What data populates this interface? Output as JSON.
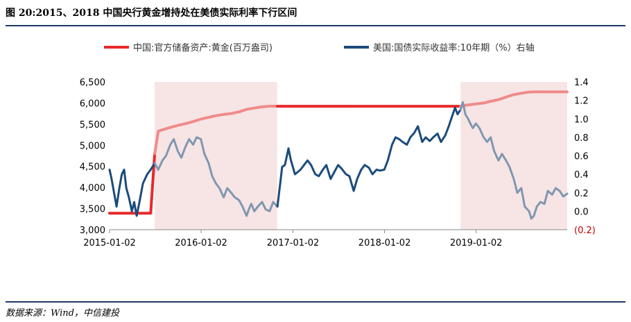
{
  "title": "图 20:2015、2018 中国央行黄金增持处在美债实际利率下行区间",
  "source": "数据来源：Wind，中信建投",
  "colors": {
    "gold": "#e8282a",
    "gold_light": "#f08a8a",
    "real": "#1b4b7c",
    "real_light": "#7f97b0",
    "shade": "#f7e4e4"
  },
  "chart_data": {
    "type": "line",
    "legend": [
      "中国:官方储备资产:黄金(百万盎司)",
      "美国:国债实际收益率:10年期（%）右轴"
    ],
    "legend_position": "top",
    "x_ticks": [
      "2015-01-02",
      "2016-01-02",
      "2017-01-02",
      "2018-01-02",
      "2019-01-02"
    ],
    "x_range": [
      "2015-01-02",
      "2019-12-31"
    ],
    "y_left": {
      "ticks": [
        "3,000",
        "3,500",
        "4,000",
        "4,500",
        "5,000",
        "5,500",
        "6,000",
        "6,500"
      ],
      "range": [
        3000,
        6500
      ]
    },
    "y_right": {
      "ticks": [
        "(0.2)",
        "0.0",
        "0.2",
        "0.4",
        "0.6",
        "0.8",
        "1.0",
        "1.2",
        "1.4"
      ],
      "range": [
        -0.2,
        1.4
      ]
    },
    "shaded_periods": [
      [
        "2015-07-01",
        "2016-10-31"
      ],
      [
        "2018-11-01",
        "2019-12-31"
      ]
    ],
    "series": [
      {
        "name": "中国:官方储备资产:黄金(百万盎司)",
        "axis": "left",
        "points": [
          [
            "2015-01-02",
            3389
          ],
          [
            "2015-02-01",
            3389
          ],
          [
            "2015-03-01",
            3389
          ],
          [
            "2015-04-01",
            3389
          ],
          [
            "2015-05-01",
            3389
          ],
          [
            "2015-06-01",
            3389
          ],
          [
            "2015-06-15",
            3389
          ],
          [
            "2015-07-01",
            4800
          ],
          [
            "2015-07-15",
            5332
          ],
          [
            "2015-08-01",
            5365
          ],
          [
            "2015-09-01",
            5420
          ],
          [
            "2015-10-01",
            5470
          ],
          [
            "2015-11-01",
            5510
          ],
          [
            "2015-12-01",
            5560
          ],
          [
            "2016-01-01",
            5620
          ],
          [
            "2016-02-01",
            5660
          ],
          [
            "2016-03-01",
            5700
          ],
          [
            "2016-04-01",
            5730
          ],
          [
            "2016-05-01",
            5750
          ],
          [
            "2016-06-01",
            5790
          ],
          [
            "2016-07-01",
            5850
          ],
          [
            "2016-08-01",
            5880
          ],
          [
            "2016-09-01",
            5910
          ],
          [
            "2016-10-01",
            5925
          ],
          [
            "2016-11-01",
            5924
          ],
          [
            "2017-01-01",
            5924
          ],
          [
            "2017-06-01",
            5924
          ],
          [
            "2018-01-01",
            5924
          ],
          [
            "2018-06-01",
            5924
          ],
          [
            "2018-10-01",
            5924
          ],
          [
            "2018-11-01",
            5924
          ],
          [
            "2018-12-01",
            5956
          ],
          [
            "2019-01-01",
            5978
          ],
          [
            "2019-02-01",
            6000
          ],
          [
            "2019-03-01",
            6040
          ],
          [
            "2019-04-01",
            6080
          ],
          [
            "2019-05-01",
            6140
          ],
          [
            "2019-06-01",
            6200
          ],
          [
            "2019-07-01",
            6230
          ],
          [
            "2019-08-01",
            6260
          ],
          [
            "2019-09-01",
            6265
          ],
          [
            "2019-10-01",
            6264
          ],
          [
            "2019-11-01",
            6264
          ],
          [
            "2019-12-31",
            6264
          ]
        ]
      },
      {
        "name": "美国:国债实际收益率:10年期（%）右轴",
        "axis": "right",
        "points": [
          [
            "2015-01-02",
            0.45
          ],
          [
            "2015-01-10",
            0.35
          ],
          [
            "2015-01-20",
            0.2
          ],
          [
            "2015-01-30",
            0.05
          ],
          [
            "2015-02-10",
            0.25
          ],
          [
            "2015-02-20",
            0.4
          ],
          [
            "2015-03-01",
            0.45
          ],
          [
            "2015-03-10",
            0.25
          ],
          [
            "2015-03-20",
            0.15
          ],
          [
            "2015-04-01",
            0.0
          ],
          [
            "2015-04-10",
            0.1
          ],
          [
            "2015-04-20",
            -0.05
          ],
          [
            "2015-05-01",
            0.1
          ],
          [
            "2015-05-15",
            0.3
          ],
          [
            "2015-06-01",
            0.4
          ],
          [
            "2015-06-15",
            0.45
          ],
          [
            "2015-07-01",
            0.52
          ],
          [
            "2015-07-15",
            0.45
          ],
          [
            "2015-08-01",
            0.55
          ],
          [
            "2015-08-15",
            0.6
          ],
          [
            "2015-09-01",
            0.72
          ],
          [
            "2015-09-15",
            0.78
          ],
          [
            "2015-10-01",
            0.65
          ],
          [
            "2015-10-15",
            0.58
          ],
          [
            "2015-11-01",
            0.7
          ],
          [
            "2015-11-15",
            0.78
          ],
          [
            "2015-12-01",
            0.72
          ],
          [
            "2015-12-15",
            0.8
          ],
          [
            "2016-01-01",
            0.78
          ],
          [
            "2016-01-15",
            0.62
          ],
          [
            "2016-02-01",
            0.52
          ],
          [
            "2016-02-15",
            0.38
          ],
          [
            "2016-03-01",
            0.3
          ],
          [
            "2016-03-15",
            0.25
          ],
          [
            "2016-04-01",
            0.15
          ],
          [
            "2016-04-15",
            0.25
          ],
          [
            "2016-05-01",
            0.2
          ],
          [
            "2016-05-15",
            0.15
          ],
          [
            "2016-06-01",
            0.12
          ],
          [
            "2016-06-15",
            0.05
          ],
          [
            "2016-07-01",
            -0.05
          ],
          [
            "2016-07-10",
            0.02
          ],
          [
            "2016-07-20",
            0.08
          ],
          [
            "2016-08-01",
            0.0
          ],
          [
            "2016-08-15",
            0.05
          ],
          [
            "2016-09-01",
            0.1
          ],
          [
            "2016-09-15",
            0.02
          ],
          [
            "2016-10-01",
            0.0
          ],
          [
            "2016-10-15",
            0.1
          ],
          [
            "2016-11-01",
            0.05
          ],
          [
            "2016-11-10",
            0.25
          ],
          [
            "2016-11-20",
            0.48
          ],
          [
            "2016-12-01",
            0.5
          ],
          [
            "2016-12-15",
            0.68
          ],
          [
            "2016-12-25",
            0.55
          ],
          [
            "2017-01-10",
            0.4
          ],
          [
            "2017-02-01",
            0.45
          ],
          [
            "2017-03-01",
            0.55
          ],
          [
            "2017-03-15",
            0.5
          ],
          [
            "2017-04-01",
            0.4
          ],
          [
            "2017-04-15",
            0.38
          ],
          [
            "2017-05-01",
            0.45
          ],
          [
            "2017-05-15",
            0.5
          ],
          [
            "2017-06-01",
            0.35
          ],
          [
            "2017-06-15",
            0.42
          ],
          [
            "2017-07-01",
            0.5
          ],
          [
            "2017-07-15",
            0.46
          ],
          [
            "2017-08-01",
            0.4
          ],
          [
            "2017-08-15",
            0.38
          ],
          [
            "2017-09-01",
            0.22
          ],
          [
            "2017-09-15",
            0.35
          ],
          [
            "2017-10-01",
            0.45
          ],
          [
            "2017-10-15",
            0.5
          ],
          [
            "2017-11-01",
            0.47
          ],
          [
            "2017-11-15",
            0.4
          ],
          [
            "2017-12-01",
            0.45
          ],
          [
            "2017-12-15",
            0.44
          ],
          [
            "2018-01-01",
            0.45
          ],
          [
            "2018-01-15",
            0.55
          ],
          [
            "2018-02-01",
            0.72
          ],
          [
            "2018-02-15",
            0.8
          ],
          [
            "2018-03-01",
            0.78
          ],
          [
            "2018-03-15",
            0.75
          ],
          [
            "2018-04-01",
            0.72
          ],
          [
            "2018-04-15",
            0.8
          ],
          [
            "2018-05-01",
            0.85
          ],
          [
            "2018-05-15",
            0.92
          ],
          [
            "2018-06-01",
            0.75
          ],
          [
            "2018-06-15",
            0.8
          ],
          [
            "2018-07-01",
            0.76
          ],
          [
            "2018-07-15",
            0.8
          ],
          [
            "2018-08-01",
            0.84
          ],
          [
            "2018-08-15",
            0.75
          ],
          [
            "2018-09-01",
            0.82
          ],
          [
            "2018-09-15",
            0.92
          ],
          [
            "2018-10-01",
            1.05
          ],
          [
            "2018-10-10",
            1.12
          ],
          [
            "2018-10-20",
            1.05
          ],
          [
            "2018-11-01",
            1.1
          ],
          [
            "2018-11-10",
            1.18
          ],
          [
            "2018-11-20",
            1.05
          ],
          [
            "2018-12-01",
            1.0
          ],
          [
            "2018-12-10",
            0.95
          ],
          [
            "2018-12-20",
            0.9
          ],
          [
            "2019-01-01",
            0.95
          ],
          [
            "2019-01-15",
            0.9
          ],
          [
            "2019-02-01",
            0.8
          ],
          [
            "2019-02-15",
            0.75
          ],
          [
            "2019-03-01",
            0.8
          ],
          [
            "2019-03-15",
            0.65
          ],
          [
            "2019-04-01",
            0.55
          ],
          [
            "2019-04-15",
            0.62
          ],
          [
            "2019-05-01",
            0.55
          ],
          [
            "2019-05-15",
            0.48
          ],
          [
            "2019-06-01",
            0.35
          ],
          [
            "2019-06-15",
            0.2
          ],
          [
            "2019-07-01",
            0.25
          ],
          [
            "2019-07-15",
            0.05
          ],
          [
            "2019-08-01",
            0.0
          ],
          [
            "2019-08-10",
            -0.08
          ],
          [
            "2019-08-20",
            -0.05
          ],
          [
            "2019-09-01",
            0.05
          ],
          [
            "2019-09-15",
            0.1
          ],
          [
            "2019-10-01",
            0.08
          ],
          [
            "2019-10-15",
            0.22
          ],
          [
            "2019-11-01",
            0.18
          ],
          [
            "2019-11-15",
            0.25
          ],
          [
            "2019-12-01",
            0.22
          ],
          [
            "2019-12-15",
            0.16
          ],
          [
            "2019-12-31",
            0.19
          ]
        ]
      }
    ]
  }
}
